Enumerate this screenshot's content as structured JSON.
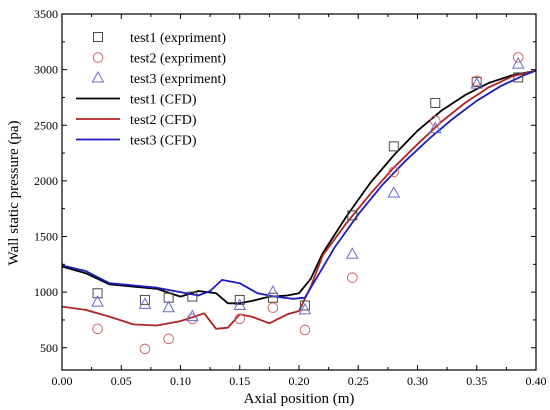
{
  "chart_data": {
    "type": "scatter",
    "xlabel": "Axial position (m)",
    "ylabel": "Wall static pressure (pa)",
    "xlim": [
      0.0,
      0.4
    ],
    "ylim": [
      300,
      3500
    ],
    "xticks": [
      "0.00",
      "0.05",
      "0.10",
      "0.15",
      "0.20",
      "0.25",
      "0.30",
      "0.35",
      "0.40"
    ],
    "yticks": [
      "500",
      "1000",
      "1500",
      "2000",
      "2500",
      "3000",
      "3500"
    ],
    "grid": false,
    "legend_position": "top-left",
    "series": [
      {
        "name": "test1 (expriment)",
        "kind": "scatter",
        "marker": "square",
        "color": "#4a4a4a",
        "x": [
          0.03,
          0.07,
          0.09,
          0.11,
          0.15,
          0.178,
          0.205,
          0.245,
          0.28,
          0.315,
          0.35,
          0.385
        ],
        "y": [
          990,
          930,
          950,
          960,
          930,
          950,
          880,
          1690,
          2310,
          2700,
          2890,
          2930
        ]
      },
      {
        "name": "test2 (expriment)",
        "kind": "scatter",
        "marker": "circle",
        "color": "#d06a6a",
        "x": [
          0.03,
          0.07,
          0.09,
          0.11,
          0.15,
          0.178,
          0.205,
          0.245,
          0.28,
          0.315,
          0.35,
          0.385
        ],
        "y": [
          670,
          490,
          580,
          760,
          760,
          860,
          660,
          1130,
          2080,
          2540,
          2900,
          3110
        ]
      },
      {
        "name": "test3 (expriment)",
        "kind": "scatter",
        "marker": "triangle",
        "color": "#6a6ad0",
        "x": [
          0.03,
          0.07,
          0.09,
          0.11,
          0.15,
          0.178,
          0.205,
          0.245,
          0.28,
          0.315,
          0.35,
          0.385
        ],
        "y": [
          910,
          890,
          860,
          780,
          880,
          1000,
          840,
          1340,
          1890,
          2470,
          2870,
          3050
        ]
      },
      {
        "name": "test1 (CFD)",
        "kind": "line",
        "color": "#000000",
        "x": [
          0.0,
          0.02,
          0.04,
          0.06,
          0.08,
          0.1,
          0.115,
          0.13,
          0.14,
          0.15,
          0.16,
          0.175,
          0.19,
          0.2,
          0.21,
          0.22,
          0.24,
          0.26,
          0.28,
          0.3,
          0.32,
          0.34,
          0.36,
          0.38,
          0.4
        ],
        "y": [
          1230,
          1170,
          1070,
          1050,
          1030,
          960,
          1010,
          990,
          900,
          900,
          920,
          960,
          970,
          990,
          1120,
          1350,
          1680,
          1980,
          2230,
          2450,
          2630,
          2770,
          2880,
          2950,
          2990
        ]
      },
      {
        "name": "test2 (CFD)",
        "kind": "line",
        "color": "#b22222",
        "x": [
          0.0,
          0.02,
          0.04,
          0.06,
          0.08,
          0.1,
          0.12,
          0.13,
          0.14,
          0.15,
          0.16,
          0.175,
          0.19,
          0.2,
          0.21,
          0.22,
          0.24,
          0.26,
          0.28,
          0.3,
          0.32,
          0.34,
          0.36,
          0.38,
          0.4
        ],
        "y": [
          870,
          840,
          780,
          710,
          700,
          740,
          810,
          670,
          680,
          800,
          780,
          720,
          800,
          830,
          1050,
          1330,
          1620,
          1880,
          2120,
          2330,
          2530,
          2700,
          2840,
          2940,
          2990
        ]
      },
      {
        "name": "test3 (CFD)",
        "kind": "line",
        "color": "#1c1cbf",
        "x": [
          0.0,
          0.02,
          0.04,
          0.06,
          0.08,
          0.1,
          0.115,
          0.125,
          0.135,
          0.15,
          0.165,
          0.18,
          0.195,
          0.205,
          0.215,
          0.23,
          0.25,
          0.27,
          0.29,
          0.31,
          0.33,
          0.35,
          0.37,
          0.39,
          0.4
        ],
        "y": [
          1240,
          1190,
          1080,
          1060,
          1040,
          1000,
          970,
          1010,
          1110,
          1080,
          990,
          960,
          940,
          950,
          1130,
          1400,
          1700,
          1960,
          2180,
          2380,
          2560,
          2720,
          2850,
          2950,
          2990
        ]
      }
    ]
  }
}
